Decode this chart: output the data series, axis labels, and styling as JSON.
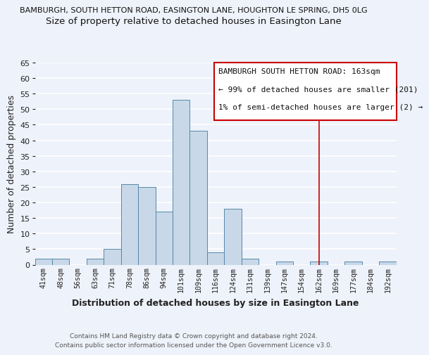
{
  "title_top": "BAMBURGH, SOUTH HETTON ROAD, EASINGTON LANE, HOUGHTON LE SPRING, DH5 0LG",
  "title_main": "Size of property relative to detached houses in Easington Lane",
  "xlabel": "Distribution of detached houses by size in Easington Lane",
  "ylabel": "Number of detached properties",
  "bin_labels": [
    "41sqm",
    "48sqm",
    "56sqm",
    "63sqm",
    "71sqm",
    "78sqm",
    "86sqm",
    "94sqm",
    "101sqm",
    "109sqm",
    "116sqm",
    "124sqm",
    "131sqm",
    "139sqm",
    "147sqm",
    "154sqm",
    "162sqm",
    "169sqm",
    "177sqm",
    "184sqm",
    "192sqm"
  ],
  "bar_heights": [
    2,
    2,
    0,
    2,
    5,
    26,
    25,
    17,
    53,
    43,
    4,
    18,
    2,
    0,
    1,
    0,
    1,
    0,
    1,
    0,
    1
  ],
  "bar_color": "#c8d8e8",
  "bar_edge_color": "#5588aa",
  "ylim": [
    0,
    65
  ],
  "yticks": [
    0,
    5,
    10,
    15,
    20,
    25,
    30,
    35,
    40,
    45,
    50,
    55,
    60,
    65
  ],
  "vline_x": 16,
  "vline_color": "#cc0000",
  "legend_text_line1": "BAMBURGH SOUTH HETTON ROAD: 163sqm",
  "legend_text_line2": "← 99% of detached houses are smaller (201)",
  "legend_text_line3": "1% of semi-detached houses are larger (2) →",
  "footer_line1": "Contains HM Land Registry data © Crown copyright and database right 2024.",
  "footer_line2": "Contains public sector information licensed under the Open Government Licence v3.0.",
  "background_color": "#eef2fa",
  "grid_color": "#ffffff"
}
